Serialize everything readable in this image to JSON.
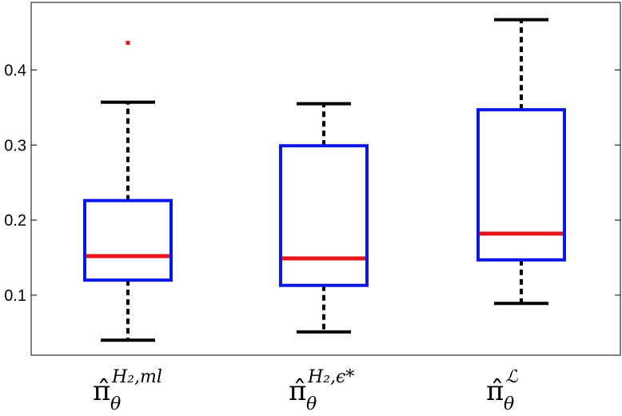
{
  "chart_data": {
    "type": "boxplot",
    "title": "",
    "xlabel": "",
    "ylabel": "",
    "ylim": [
      0.02,
      0.49
    ],
    "yticks": [
      0.1,
      0.2,
      0.3,
      0.4
    ],
    "ytick_labels": [
      "0.1",
      "0.2",
      "0.3",
      "0.4"
    ],
    "grid": false,
    "legend": "none",
    "colors": {
      "box": "#0a17e6",
      "median": "#e6161b",
      "whisker": "#000000",
      "outlier": "#e6161b"
    },
    "categories": [
      {
        "base": "π̂",
        "sub": "θ",
        "sup": "H₂,ml"
      },
      {
        "base": "π̂",
        "sub": "θ",
        "sup": "H₂,ϵ*"
      },
      {
        "base": "π̂",
        "sub": "θ",
        "sup": "ℒ"
      }
    ],
    "boxes": [
      {
        "whisker_low": 0.04,
        "q1": 0.12,
        "median": 0.152,
        "q3": 0.226,
        "whisker_high": 0.357,
        "outliers": [
          0.436
        ]
      },
      {
        "whisker_low": 0.051,
        "q1": 0.113,
        "median": 0.149,
        "q3": 0.299,
        "whisker_high": 0.355,
        "outliers": []
      },
      {
        "whisker_low": 0.089,
        "q1": 0.147,
        "median": 0.182,
        "q3": 0.347,
        "whisker_high": 0.467,
        "outliers": []
      }
    ]
  }
}
